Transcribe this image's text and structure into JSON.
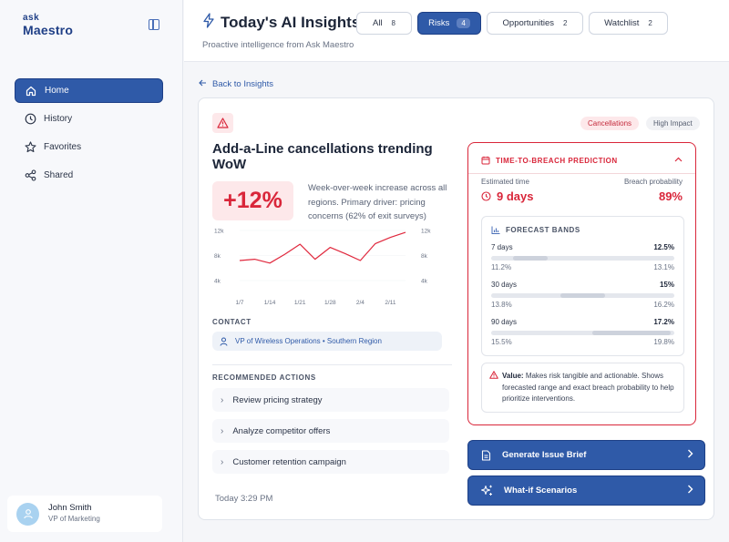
{
  "brand": {
    "ask": "ask",
    "name": "Maestro"
  },
  "sidebar": {
    "items": [
      {
        "label": "Home",
        "icon": "home-icon",
        "active": true
      },
      {
        "label": "History",
        "icon": "clock-icon"
      },
      {
        "label": "Favorites",
        "icon": "star-icon"
      },
      {
        "label": "Shared",
        "icon": "share-icon"
      }
    ],
    "user": {
      "name": "John Smith",
      "role": "VP of Marketing"
    }
  },
  "header": {
    "title": "Today's AI Insights",
    "subtitle": "Proactive intelligence from Ask Maestro",
    "tabs": [
      {
        "label": "All",
        "count": "8"
      },
      {
        "label": "Risks",
        "count": "4",
        "active": true
      },
      {
        "label": "Opportunities",
        "count": "2"
      },
      {
        "label": "Watchlist",
        "count": "2"
      }
    ]
  },
  "back_link": "Back to Insights",
  "insight": {
    "category": "Cancellations",
    "impact": "High Impact",
    "headline": "Add-a-Line cancellations trending WoW",
    "change": "+12%",
    "description": "Week-over-week increase across all regions. Primary driver: pricing concerns (62% of exit surveys)",
    "contact_label": "CONTACT",
    "contact": "VP of Wireless Operations • Southern Region",
    "actions_label": "RECOMMENDED ACTIONS",
    "actions": [
      "Review pricing strategy",
      "Analyze competitor offers",
      "Customer retention campaign"
    ],
    "timestamp": "Today 3:29 PM"
  },
  "chart_data": {
    "type": "line",
    "x": [
      "1/7",
      "1/10",
      "1/14",
      "1/17",
      "1/21",
      "1/24",
      "1/28",
      "1/31",
      "2/4",
      "2/7",
      "2/11",
      "2/14"
    ],
    "series": [
      {
        "values": [
          7.2,
          7.4,
          6.8,
          8.2,
          9.8,
          7.4,
          9.3,
          8.3,
          7.2,
          9.9,
          10.9,
          11.7
        ]
      }
    ],
    "xticks": [
      "1/7",
      "1/14",
      "1/21",
      "1/28",
      "2/4",
      "2/11"
    ],
    "yticks": [
      "12k",
      "8k",
      "4k"
    ],
    "ylim": [
      4,
      12
    ],
    "color": "#e0283d"
  },
  "prediction": {
    "title": "TIME-TO-BREACH PREDICTION",
    "est_label": "Estimated time",
    "est_value": "9 days",
    "prob_label": "Breach probability",
    "prob_value": "89%",
    "bands_title": "FORECAST BANDS",
    "bands": [
      {
        "name": "7 days",
        "value": "12.5%",
        "low": "11.2%",
        "high": "13.1%"
      },
      {
        "name": "30 days",
        "value": "15%",
        "low": "13.8%",
        "high": "16.2%"
      },
      {
        "name": "90 days",
        "value": "17.2%",
        "low": "15.5%",
        "high": "19.8%"
      }
    ],
    "note_label": "Value:",
    "note": "Makes risk tangible and actionable. Shows forecasted range and exact breach probability to help prioritize interventions."
  },
  "buttons": {
    "brief": "Generate Issue Brief",
    "whatif": "What-if Scenarios"
  },
  "colors": {
    "accent": "#2f5aa8",
    "danger": "#d9263a"
  }
}
